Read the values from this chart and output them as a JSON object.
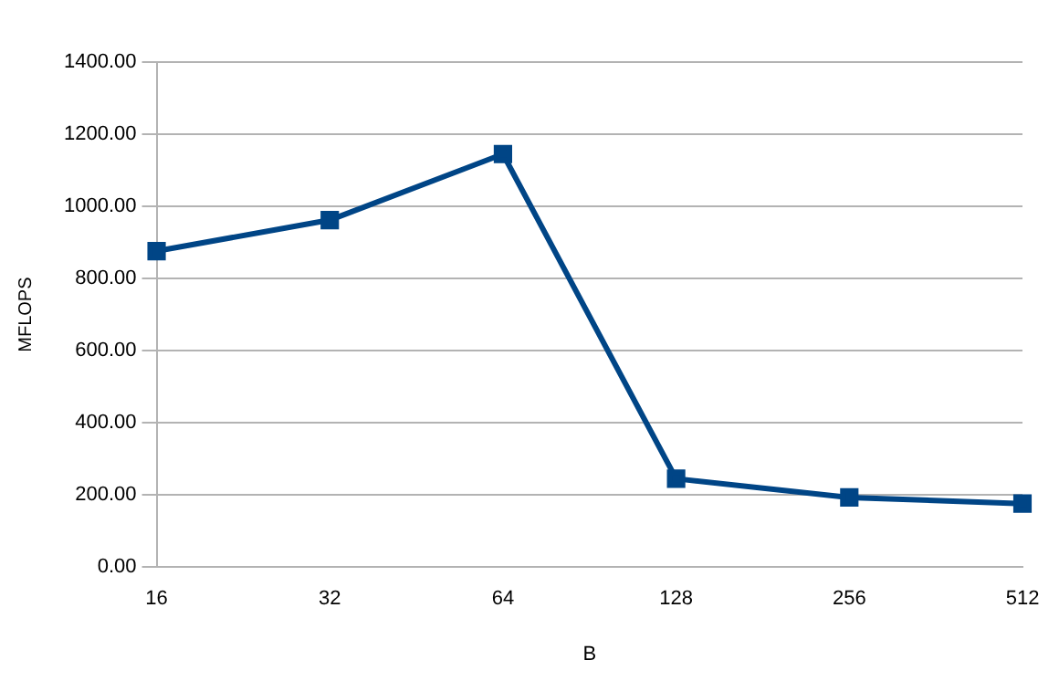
{
  "chart_data": {
    "type": "line",
    "xlabel": "B",
    "ylabel": "MFLOPS",
    "categories": [
      "16",
      "32",
      "64",
      "128",
      "256",
      "512"
    ],
    "series": [
      {
        "color": "#004586",
        "values": [
          876,
          962,
          1145,
          245,
          193,
          176
        ]
      }
    ],
    "ylim": [
      0,
      1400
    ],
    "yticks": [
      {
        "value": 0,
        "label": "0.00"
      },
      {
        "value": 200,
        "label": "200.00"
      },
      {
        "value": 400,
        "label": "400.00"
      },
      {
        "value": 600,
        "label": "600.00"
      },
      {
        "value": 800,
        "label": "800.00"
      },
      {
        "value": 1000,
        "label": "1000.00"
      },
      {
        "value": 1200,
        "label": "1200.00"
      },
      {
        "value": 1400,
        "label": "1400.00"
      }
    ],
    "grid": "y",
    "legend": false,
    "marker": "square",
    "line_style": "solid"
  }
}
